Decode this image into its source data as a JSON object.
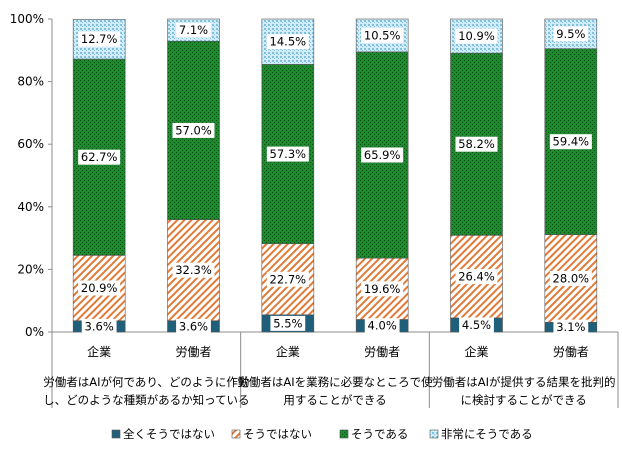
{
  "chart_data": {
    "type": "bar",
    "stacked": "percent",
    "ylim": [
      0,
      100
    ],
    "yticks": [
      "0%",
      "20%",
      "40%",
      "60%",
      "80%",
      "100%"
    ],
    "grid": false,
    "legend_position": "bottom",
    "groups": [
      {
        "lines": [
          "労働者はAIが何であり、どのように作動",
          "し、どのような種類があるか知っている"
        ],
        "categories": [
          "企業",
          "労働者"
        ]
      },
      {
        "lines": [
          "労働者はAIを業務に必要なところで使",
          "用することができる"
        ],
        "categories": [
          "企業",
          "労働者"
        ]
      },
      {
        "lines": [
          "労働者はAIが提供する結果を批判的",
          "に検討することができる"
        ],
        "categories": [
          "企業",
          "労働者"
        ]
      }
    ],
    "categories": [
      "企業",
      "労働者",
      "企業",
      "労働者",
      "企業",
      "労働者"
    ],
    "series": [
      {
        "name": "全くそうではない",
        "color": "#1f5f7a",
        "pattern": "solid",
        "values": [
          3.6,
          3.6,
          5.5,
          4.0,
          4.5,
          3.1
        ]
      },
      {
        "name": "そうではない",
        "color": "#e07b39",
        "pattern": "diagonal-hatch",
        "values": [
          20.9,
          32.3,
          22.7,
          19.6,
          26.4,
          28.0
        ]
      },
      {
        "name": "そうである",
        "color": "#1e8a2e",
        "pattern": "dots",
        "values": [
          62.7,
          57.0,
          57.3,
          65.9,
          58.2,
          59.4
        ]
      },
      {
        "name": "非常にそうである",
        "color": "#9fd0e6",
        "pattern": "sparse-dots",
        "values": [
          12.7,
          7.1,
          14.5,
          10.5,
          10.9,
          9.5
        ]
      }
    ],
    "labels": [
      [
        "3.6%",
        "3.6%",
        "5.5%",
        "4.0%",
        "4.5%",
        "3.1%"
      ],
      [
        "20.9%",
        "32.3%",
        "22.7%",
        "19.6%",
        "26.4%",
        "28.0%"
      ],
      [
        "62.7%",
        "57.0%",
        "57.3%",
        "65.9%",
        "58.2%",
        "59.4%"
      ],
      [
        "12.7%",
        "7.1%",
        "14.5%",
        "10.5%",
        "10.9%",
        "9.5%"
      ]
    ]
  }
}
